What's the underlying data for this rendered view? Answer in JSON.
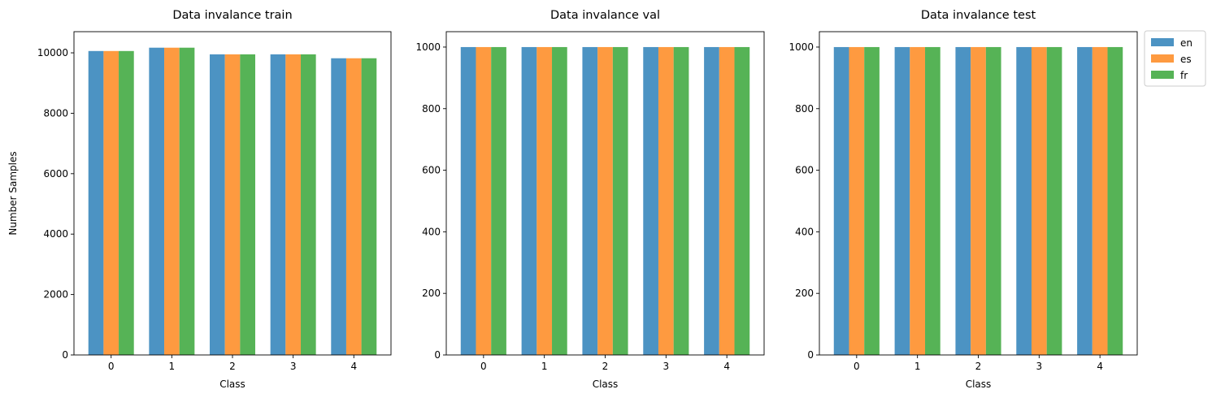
{
  "chart_data": [
    {
      "type": "bar",
      "title": "Data invalance train",
      "xlabel": "Class",
      "ylabel": "Number Samples",
      "categories": [
        "0",
        "1",
        "2",
        "3",
        "4"
      ],
      "ylim": [
        0,
        10700
      ],
      "yticks": [
        0,
        2000,
        4000,
        6000,
        8000,
        10000
      ],
      "series": [
        {
          "name": "en",
          "values": [
            10060,
            10170,
            9950,
            9950,
            9820
          ]
        },
        {
          "name": "es",
          "values": [
            10060,
            10170,
            9950,
            9950,
            9820
          ]
        },
        {
          "name": "fr",
          "values": [
            10060,
            10170,
            9950,
            9950,
            9820
          ]
        }
      ],
      "grid": false
    },
    {
      "type": "bar",
      "title": "Data invalance val",
      "xlabel": "Class",
      "ylabel": "",
      "categories": [
        "0",
        "1",
        "2",
        "3",
        "4"
      ],
      "ylim": [
        0,
        1050
      ],
      "yticks": [
        0,
        200,
        400,
        600,
        800,
        1000
      ],
      "series": [
        {
          "name": "en",
          "values": [
            1000,
            1000,
            1000,
            1000,
            1000
          ]
        },
        {
          "name": "es",
          "values": [
            1000,
            1000,
            1000,
            1000,
            1000
          ]
        },
        {
          "name": "fr",
          "values": [
            1000,
            1000,
            1000,
            1000,
            1000
          ]
        }
      ],
      "grid": false
    },
    {
      "type": "bar",
      "title": "Data invalance test",
      "xlabel": "Class",
      "ylabel": "",
      "categories": [
        "0",
        "1",
        "2",
        "3",
        "4"
      ],
      "ylim": [
        0,
        1050
      ],
      "yticks": [
        0,
        200,
        400,
        600,
        800,
        1000
      ],
      "series": [
        {
          "name": "en",
          "values": [
            1000,
            1000,
            1000,
            1000,
            1000
          ]
        },
        {
          "name": "es",
          "values": [
            1000,
            1000,
            1000,
            1000,
            1000
          ]
        },
        {
          "name": "fr",
          "values": [
            1000,
            1000,
            1000,
            1000,
            1000
          ]
        }
      ],
      "grid": false
    }
  ],
  "legend": {
    "placement": "outside-right-top",
    "entries": [
      {
        "label": "en",
        "color": "#4c93c3"
      },
      {
        "label": "es",
        "color": "#fe9a40"
      },
      {
        "label": "fr",
        "color": "#56b356"
      }
    ]
  }
}
